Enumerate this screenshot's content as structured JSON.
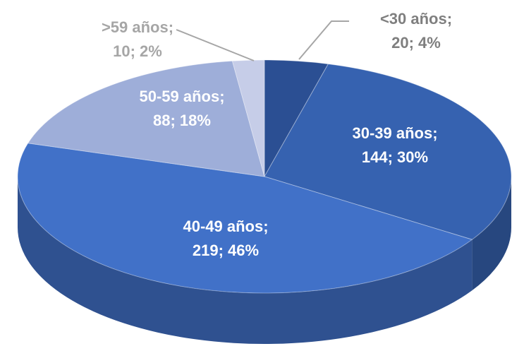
{
  "chart_data": {
    "type": "pie",
    "categories": [
      "<30 años;",
      "30-39 años;",
      "40-49 años;",
      "50-59 años;",
      ">59 años;"
    ],
    "values": [
      20,
      144,
      219,
      88,
      10
    ],
    "value_labels": [
      "20; 4%",
      "144; 30%",
      "219; 46%",
      "88; 18%",
      "10; 2%"
    ],
    "colors": [
      "#2b4f93",
      "#3662b0",
      "#4171c8",
      "#9eaed9",
      "#c6cde8"
    ]
  }
}
